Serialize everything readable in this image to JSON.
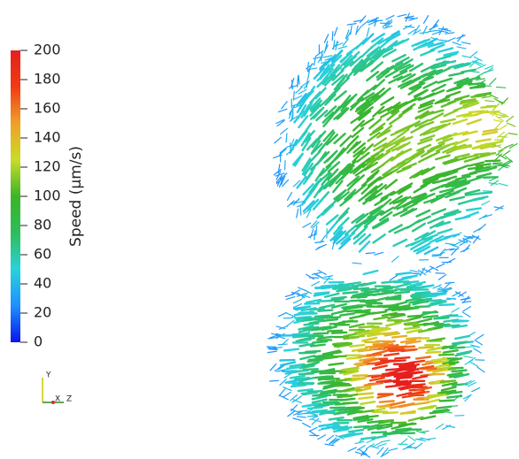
{
  "colorbar": {
    "title": "Speed (μm/s)",
    "range": [
      0,
      200
    ],
    "ticks": [
      0,
      20,
      40,
      60,
      80,
      100,
      120,
      140,
      160,
      180,
      200
    ],
    "colors": [
      "#0a14f0",
      "#1e90ff",
      "#28d2dc",
      "#2dbe5a",
      "#3cb428",
      "#c8dc28",
      "#f0a028",
      "#f03c14",
      "#e61e1e"
    ]
  },
  "axes": {
    "y": "Y",
    "x": "X",
    "z": "Z"
  }
}
